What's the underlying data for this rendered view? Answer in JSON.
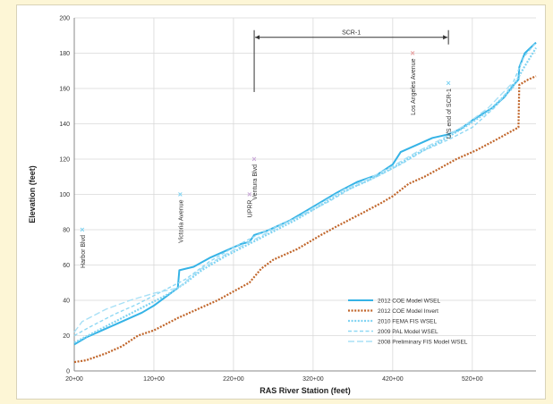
{
  "chart_data": {
    "type": "line",
    "title": "",
    "xlabel": "RAS River Station (feet)",
    "ylabel": "Elevation (feet)",
    "xlim": [
      2000,
      60000
    ],
    "ylim": [
      0,
      200
    ],
    "grid": true,
    "legend_position": "bottom-right",
    "x_ticks": [
      {
        "value": 2000,
        "label": "20+00"
      },
      {
        "value": 12000,
        "label": "120+00"
      },
      {
        "value": 22000,
        "label": "220+00"
      },
      {
        "value": 32000,
        "label": "320+00"
      },
      {
        "value": 42000,
        "label": "420+00"
      },
      {
        "value": 52000,
        "label": "520+00"
      }
    ],
    "y_ticks": [
      0,
      20,
      40,
      60,
      80,
      100,
      120,
      140,
      160,
      180,
      200
    ],
    "series": [
      {
        "name": "2012 COE Model WSEL",
        "color": "#35b3e6",
        "style": "solid",
        "points": [
          [
            2000,
            15
          ],
          [
            3500,
            19
          ],
          [
            5500,
            23
          ],
          [
            8000,
            28
          ],
          [
            10500,
            33
          ],
          [
            12000,
            37
          ],
          [
            13500,
            42
          ],
          [
            15000,
            47
          ],
          [
            15200,
            57
          ],
          [
            17000,
            59
          ],
          [
            19000,
            64
          ],
          [
            21000,
            68
          ],
          [
            23000,
            72
          ],
          [
            24000,
            73
          ],
          [
            24600,
            77
          ],
          [
            26000,
            79
          ],
          [
            29000,
            85
          ],
          [
            32000,
            93
          ],
          [
            35000,
            101
          ],
          [
            37500,
            107
          ],
          [
            40000,
            111
          ],
          [
            42000,
            117
          ],
          [
            43000,
            124
          ],
          [
            45000,
            128
          ],
          [
            47000,
            132
          ],
          [
            49000,
            134
          ],
          [
            50500,
            137
          ],
          [
            52000,
            142
          ],
          [
            54500,
            149
          ],
          [
            56000,
            155
          ],
          [
            57200,
            162
          ],
          [
            57800,
            165
          ],
          [
            57900,
            172
          ],
          [
            58600,
            180
          ],
          [
            60000,
            186
          ]
        ]
      },
      {
        "name": "2012 COE Model Invert",
        "color": "#c0652a",
        "style": "dotted",
        "points": [
          [
            2000,
            5
          ],
          [
            3500,
            6
          ],
          [
            6000,
            10
          ],
          [
            8000,
            14
          ],
          [
            10000,
            20
          ],
          [
            12000,
            23
          ],
          [
            15000,
            30
          ],
          [
            17000,
            34
          ],
          [
            20000,
            40
          ],
          [
            22000,
            45
          ],
          [
            24000,
            50
          ],
          [
            25500,
            58
          ],
          [
            27000,
            63
          ],
          [
            30000,
            69
          ],
          [
            33000,
            77
          ],
          [
            35000,
            82
          ],
          [
            38000,
            89
          ],
          [
            40500,
            95
          ],
          [
            42000,
            99
          ],
          [
            44000,
            106
          ],
          [
            46000,
            110
          ],
          [
            48000,
            115
          ],
          [
            50000,
            120
          ],
          [
            52500,
            125
          ],
          [
            55000,
            131
          ],
          [
            57800,
            138
          ],
          [
            57900,
            162
          ],
          [
            59000,
            165
          ],
          [
            60000,
            167
          ]
        ]
      },
      {
        "name": "2010 FEMA FIS WSEL",
        "color": "#7fd3f2",
        "style": "dotted",
        "points": [
          [
            2000,
            16
          ],
          [
            5000,
            23
          ],
          [
            8000,
            30
          ],
          [
            11000,
            37
          ],
          [
            14000,
            44
          ],
          [
            16000,
            50
          ],
          [
            18000,
            57
          ],
          [
            21000,
            65
          ],
          [
            24000,
            72
          ],
          [
            27000,
            79
          ],
          [
            30000,
            86
          ],
          [
            33000,
            94
          ],
          [
            36000,
            102
          ],
          [
            39000,
            108
          ],
          [
            42000,
            115
          ],
          [
            45000,
            123
          ],
          [
            48000,
            130
          ],
          [
            51000,
            138
          ],
          [
            54000,
            147
          ],
          [
            57000,
            160
          ],
          [
            58500,
            172
          ],
          [
            60000,
            183
          ]
        ]
      },
      {
        "name": "2009 PAL Model WSEL",
        "color": "#8fd8f4",
        "style": "dashed",
        "points": [
          [
            2000,
            20
          ],
          [
            4000,
            25
          ],
          [
            7000,
            32
          ],
          [
            10000,
            38
          ],
          [
            13000,
            45
          ],
          [
            16000,
            52
          ],
          [
            19000,
            62
          ],
          [
            22000,
            70
          ],
          [
            25000,
            77
          ],
          [
            28000,
            83
          ],
          [
            31000,
            89
          ],
          [
            34000,
            96
          ],
          [
            37000,
            104
          ],
          [
            40000,
            110
          ],
          [
            43000,
            117
          ],
          [
            46000,
            125
          ],
          [
            49000,
            131
          ],
          [
            52000,
            138
          ],
          [
            55000,
            150
          ],
          [
            57000,
            162
          ],
          [
            58500,
            178
          ],
          [
            60000,
            186
          ]
        ]
      },
      {
        "name": "2008 Preliminary FIS Model WSEL",
        "color": "#a8e0f6",
        "style": "longdash",
        "points": [
          [
            2000,
            22
          ],
          [
            3000,
            28
          ],
          [
            6000,
            35
          ],
          [
            9000,
            40
          ],
          [
            12000,
            44
          ],
          [
            15000,
            47
          ],
          [
            18000,
            58
          ],
          [
            21000,
            66
          ],
          [
            24000,
            73
          ],
          [
            27000,
            80
          ],
          [
            30000,
            87
          ],
          [
            33000,
            95
          ],
          [
            36000,
            103
          ],
          [
            39000,
            109
          ],
          [
            42000,
            116
          ],
          [
            45000,
            124
          ],
          [
            48000,
            131
          ],
          [
            51000,
            139
          ],
          [
            54000,
            149
          ],
          [
            57000,
            163
          ]
        ]
      }
    ],
    "markers": [
      {
        "label": "Harbor Blvd",
        "x": 3000,
        "y": 80,
        "color": "#7fd3f2"
      },
      {
        "label": "Victoria Avenue",
        "x": 15300,
        "y": 100,
        "color": "#7fd3f2"
      },
      {
        "label": "UPRR",
        "x": 24000,
        "y": 100,
        "color": "#c9a8d8"
      },
      {
        "label": "Ventura Blvd",
        "x": 24600,
        "y": 120,
        "color": "#c9a8d8"
      },
      {
        "label": "Los Angeles Avenue",
        "x": 44500,
        "y": 180,
        "color": "#e8a0a0"
      },
      {
        "label": "U/S end of SCR-1",
        "x": 49000,
        "y": 163,
        "color": "#7fd3f2"
      }
    ],
    "range_annotation": {
      "label": "SCR-1",
      "x_start": 24600,
      "x_end": 49000,
      "y": 189
    }
  }
}
